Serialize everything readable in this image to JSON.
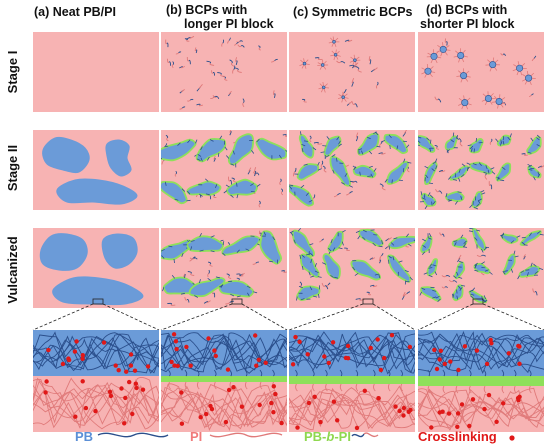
{
  "columns": [
    {
      "title_lines": [
        "(a) Neat PB/PI"
      ]
    },
    {
      "title_lines": [
        "(b) BCPs with",
        "longer PI block"
      ]
    },
    {
      "title_lines": [
        "(c) Symmetric BCPs"
      ]
    },
    {
      "title_lines": [
        "(d) BCPs with",
        "shorter PI block"
      ]
    }
  ],
  "rows": [
    {
      "label": "Stage I"
    },
    {
      "label": "Stage II"
    },
    {
      "label": "Vulcanized"
    }
  ],
  "legend": {
    "pb": "PB",
    "pi": "PI",
    "pb_b_pi_prefix": "PB-",
    "pb_b_pi_italic": "b",
    "pb_b_pi_suffix": "-PI",
    "crosslinking": "Crosslinking"
  },
  "colors": {
    "pink_background": "#f7b3b3",
    "pb_blue": "#6b9bd8",
    "pb_line": "#2b4f8c",
    "pi_line": "#e07a7a",
    "interface_green": "#8ee05a",
    "crosslink_red": "#e01818",
    "pb_label": "#5b8fd6",
    "pi_label": "#f07a7a",
    "pb_b_pi_label": "#8fd84f",
    "crosslinking_label": "#e01818"
  }
}
